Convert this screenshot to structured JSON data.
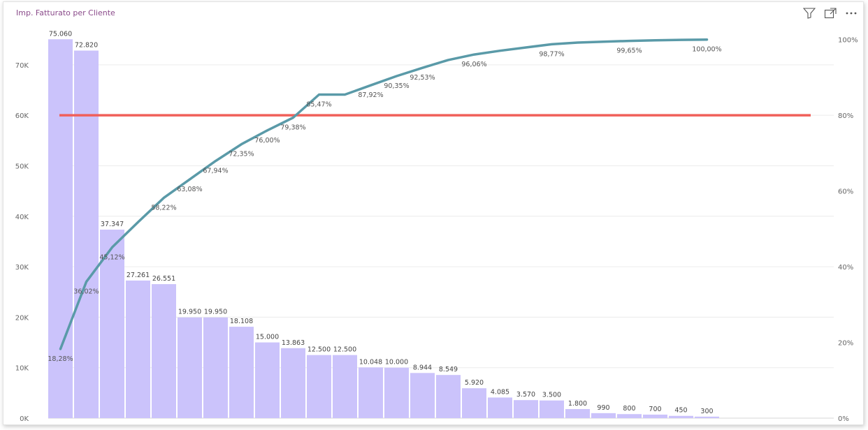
{
  "visual": {
    "title": "Imp. Fatturato per Cliente"
  },
  "header_icons": [
    "filter-icon",
    "focus-mode-icon",
    "more-options-icon"
  ],
  "chart_data": {
    "type": "bar",
    "title": "Imp. Fatturato per Cliente",
    "bar_color": "#cbc3fb",
    "line_color": "#5a9aa8",
    "threshold_color": "#f0605a",
    "bars": {
      "values": [
        75060,
        72820,
        37347,
        27261,
        26551,
        19950,
        19950,
        18108,
        15000,
        13863,
        12500,
        12500,
        10048,
        10000,
        8944,
        8549,
        5920,
        4085,
        3570,
        3500,
        1800,
        990,
        800,
        700,
        450,
        300
      ],
      "labels": [
        "75.060",
        "72.820",
        "37.347",
        "27.261",
        "26.551",
        "19.950",
        "19.950",
        "18.108",
        "15.000",
        "13.863",
        "12.500",
        "12.500",
        "10.048",
        "10.000",
        "8.944",
        "8.549",
        "5.920",
        "4.085",
        "3.570",
        "3.500",
        "1.800",
        "990",
        "800",
        "700",
        "450",
        "300"
      ]
    },
    "cumulative_line": {
      "values": [
        18.28,
        36.02,
        45.12,
        51.76,
        58.22,
        63.08,
        67.94,
        72.35,
        76.0,
        79.38,
        85.47,
        85.47,
        87.92,
        90.35,
        92.53,
        94.61,
        96.06,
        97.05,
        97.92,
        98.77,
        99.21,
        99.45,
        99.65,
        99.82,
        99.93,
        100.0
      ],
      "labels": [
        "18,28%",
        "36,02%",
        "45,12%",
        "",
        "58,22%",
        "63,08%",
        "67,94%",
        "72,35%",
        "76,00%",
        "79,38%",
        "85,47%",
        "",
        "87,92%",
        "90,35%",
        "92,53%",
        "",
        "96,06%",
        "",
        "",
        "98,77%",
        "",
        "",
        "99,65%",
        "",
        "",
        "100,00%"
      ]
    },
    "threshold": {
      "value": 80
    },
    "y_left": {
      "ticks": [
        "0K",
        "10K",
        "20K",
        "30K",
        "40K",
        "50K",
        "60K",
        "70K"
      ],
      "min": 0,
      "max": 78000,
      "step": 10000
    },
    "y_right": {
      "ticks": [
        "0%",
        "20%",
        "40%",
        "60%",
        "80%",
        "100%"
      ],
      "min": 0,
      "max": 104,
      "step": 20
    },
    "grid": true,
    "legend": "none"
  }
}
